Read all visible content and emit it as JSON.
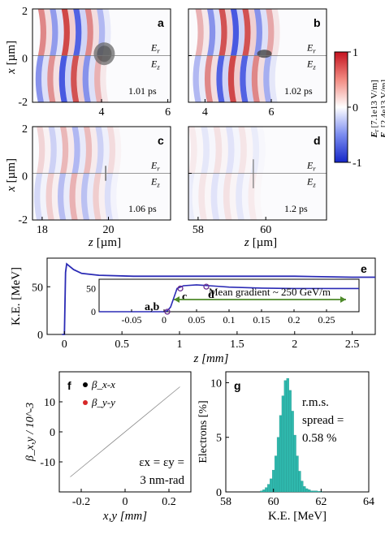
{
  "figure": {
    "fields": {
      "panels": [
        {
          "letter": "a",
          "time": "1.01 ps",
          "xticks": [
            "4",
            "6"
          ]
        },
        {
          "letter": "b",
          "time": "1.02 ps",
          "xticks": [
            "4",
            "6"
          ]
        },
        {
          "letter": "c",
          "time": "1.06 ps",
          "xticks": [
            "18",
            "20"
          ]
        },
        {
          "letter": "d",
          "time": "1.2 ps",
          "xticks": [
            "58",
            "60"
          ]
        }
      ],
      "er_label": "E",
      "er_sub": "r",
      "ez_label": "E",
      "ez_sub": "z",
      "yticks": [
        "2",
        "0",
        "-2"
      ],
      "ylabel_main": "x",
      "ylabel_unit": "[µm]",
      "xlabel_main": "z",
      "xlabel_unit": "[µm]",
      "colorbar": {
        "ticks": [
          "1",
          "0",
          "-1"
        ],
        "label_r": "E",
        "label_r_sub": "r",
        "label_r_unit": "[7.1e13 V/m]",
        "label_z": "E",
        "label_z_sub": "z",
        "label_z_unit": "[2.4e13 V/m]",
        "colors": {
          "pos": "#d73027",
          "zero": "#ffffff",
          "neg": "#1a2bd9"
        }
      }
    },
    "chart_data": [
      {
        "panel": "e",
        "type": "line",
        "ylabel": "K.E. [MeV]",
        "xlabel": "z [mm]",
        "xlim": [
          -0.15,
          2.7
        ],
        "ylim": [
          0,
          80
        ],
        "xticks": [
          "0",
          "0.5",
          "1",
          "1.5",
          "2",
          "2.5"
        ],
        "yticks": [
          "0",
          "50"
        ],
        "series": [
          {
            "color": "#2b2bb5",
            "x": [
              -0.02,
              0.0,
              0.01,
              0.02,
              0.04,
              0.08,
              0.15,
              0.3,
              0.6,
              1.0,
              1.5,
              2.0,
              2.5,
              2.7
            ],
            "y": [
              0,
              0,
              65,
              74,
              72,
              68,
              64,
              62,
              61,
              61,
              61,
              61,
              60,
              60
            ]
          }
        ],
        "inset": {
          "xlim": [
            -0.1,
            0.3
          ],
          "ylim": [
            0,
            70
          ],
          "xticks": [
            "-0.05",
            "0",
            "0.05",
            "0.1",
            "0.15",
            "0.2",
            "0.25"
          ],
          "yticks": [
            "0",
            "50"
          ],
          "x": [
            -0.1,
            0.0,
            0.005,
            0.01,
            0.015,
            0.02,
            0.03,
            0.05,
            0.07,
            0.1,
            0.15,
            0.2,
            0.25,
            0.3
          ],
          "y": [
            0,
            0,
            2,
            10,
            30,
            50,
            56,
            58,
            56,
            53,
            51,
            50,
            50,
            50
          ],
          "markers": [
            {
              "label": "a,b",
              "x": 0.005,
              "y": 0
            },
            {
              "label": "c",
              "x": 0.025,
              "y": 50
            },
            {
              "label": "d",
              "x": 0.065,
              "y": 54
            }
          ],
          "annotation": "Mean gradient ~ 250 GeV/m",
          "arrow_color": "#4e8a2a",
          "marker_color": "#6a2d8f"
        }
      },
      {
        "panel": "f",
        "type": "scatter",
        "xlabel": "x,y [mm]",
        "ylabel": "β_x,y / 10^-3",
        "xlim": [
          -0.3,
          0.3
        ],
        "ylim": [
          -20,
          20
        ],
        "xticks": [
          "-0.2",
          "0",
          "0.2"
        ],
        "yticks": [
          "10",
          "0",
          "-10"
        ],
        "series": [
          {
            "name": "β_x-x",
            "color": "#000000",
            "x": [
              -0.25,
              0.25
            ],
            "y": [
              -15,
              15
            ]
          },
          {
            "name": "β_y-y",
            "color": "#d62728",
            "x": [],
            "y": []
          }
        ],
        "annotation": [
          "εx = εy =",
          "3 nm-rad"
        ]
      },
      {
        "panel": "g",
        "type": "bar",
        "xlabel": "K.E. [MeV]",
        "ylabel": "Electrons [%]",
        "xlim": [
          58,
          64
        ],
        "ylim": [
          0,
          11
        ],
        "xticks": [
          "58",
          "60",
          "62",
          "64"
        ],
        "yticks": [
          "0",
          "5",
          "10"
        ],
        "color": "#2fb8ad",
        "annotation": [
          "r.m.s.",
          "spread =",
          "0.58 %"
        ],
        "categories": [
          59.5,
          59.6,
          59.7,
          59.8,
          59.9,
          60.0,
          60.1,
          60.2,
          60.3,
          60.4,
          60.5,
          60.6,
          60.7,
          60.8,
          60.9,
          61.0,
          61.1,
          61.2,
          61.3,
          61.4,
          61.5,
          61.6,
          61.7,
          61.8,
          61.9,
          62.0
        ],
        "values": [
          0.1,
          0.2,
          0.4,
          0.7,
          1.2,
          2.0,
          3.3,
          5.0,
          7.0,
          8.8,
          10.2,
          10.4,
          9.3,
          7.4,
          5.2,
          3.3,
          1.9,
          1.0,
          0.5,
          0.3,
          0.2,
          0.1,
          0.1,
          0.1,
          0.05,
          0.05
        ]
      }
    ]
  }
}
